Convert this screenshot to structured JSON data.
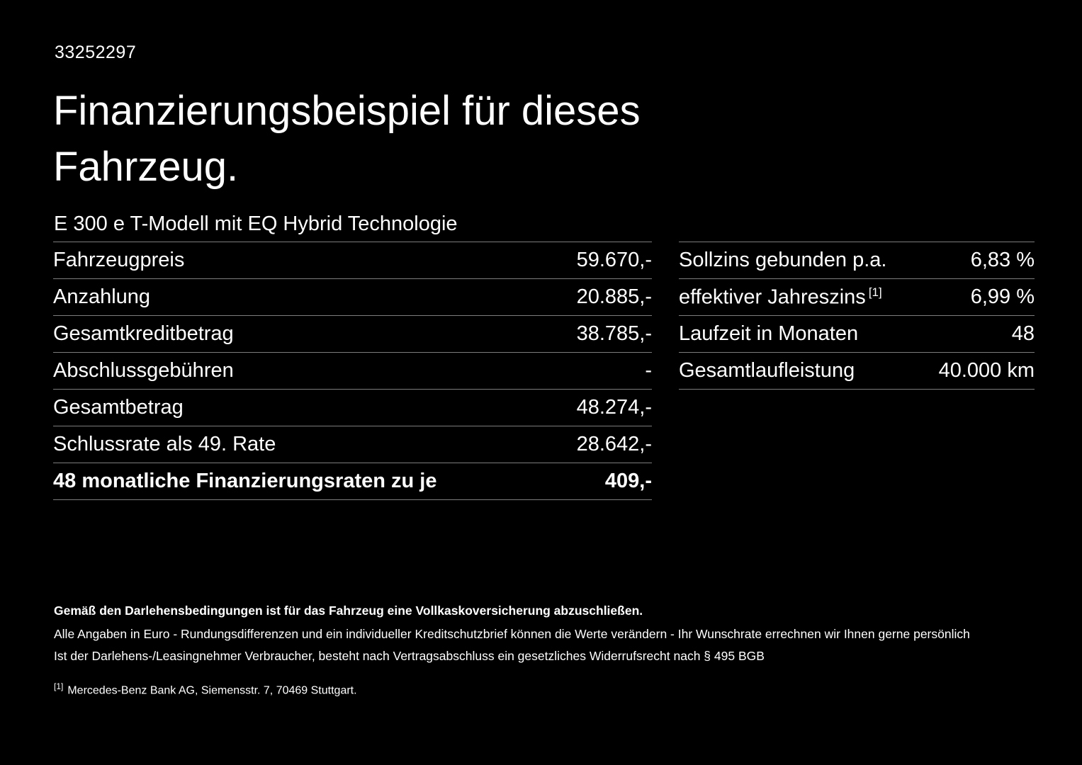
{
  "document": {
    "id_number": "33252297",
    "title": "Finanzierungsbeispiel für dieses Fahrzeug.",
    "vehicle_model": "E 300 e T-Modell mit EQ Hybrid Technologie"
  },
  "left_table": {
    "rows": [
      {
        "label": "Fahrzeugpreis",
        "value": "59.670,-"
      },
      {
        "label": "Anzahlung",
        "value": "20.885,-"
      },
      {
        "label": "Gesamtkreditbetrag",
        "value": "38.785,-"
      },
      {
        "label": "Abschlussgebühren",
        "value": "-"
      },
      {
        "label": "Gesamtbetrag",
        "value": "48.274,-"
      },
      {
        "label": "Schlussrate als 49. Rate",
        "value": "28.642,-"
      },
      {
        "label": "48 monatliche Finanzierungsraten zu je",
        "value": "409,-"
      }
    ]
  },
  "right_table": {
    "rows": [
      {
        "label": "Sollzins gebunden p.a.",
        "sup": "",
        "value": "6,83 %"
      },
      {
        "label": "effektiver Jahreszins",
        "sup": "[1]",
        "value": "6,99 %"
      },
      {
        "label": "Laufzeit in Monaten",
        "sup": "",
        "value": "48"
      },
      {
        "label": "Gesamtlaufleistung",
        "sup": "",
        "value": "40.000 km"
      }
    ]
  },
  "footer": {
    "insurance_note": "Gemäß den Darlehensbedingungen ist für das Fahrzeug eine Vollkaskoversicherung abzuschließen.",
    "disclaimer_1": "Alle Angaben in Euro - Rundungsdifferenzen und ein individueller Kreditschutzbrief können die Werte verändern - Ihr Wunschrate errechnen wir Ihnen gerne persönlich",
    "disclaimer_2": "Ist der Darlehens-/Leasingnehmer Verbraucher, besteht nach Vertragsabschluss ein gesetzliches Widerrufsrecht nach § 495 BGB",
    "footnote_marker": "[1]",
    "footnote_text": "Mercedes-Benz Bank AG, Siemensstr. 7, 70469 Stuttgart."
  },
  "colors": {
    "background": "#000000",
    "text": "#ffffff",
    "divider": "#7d7d7d"
  }
}
